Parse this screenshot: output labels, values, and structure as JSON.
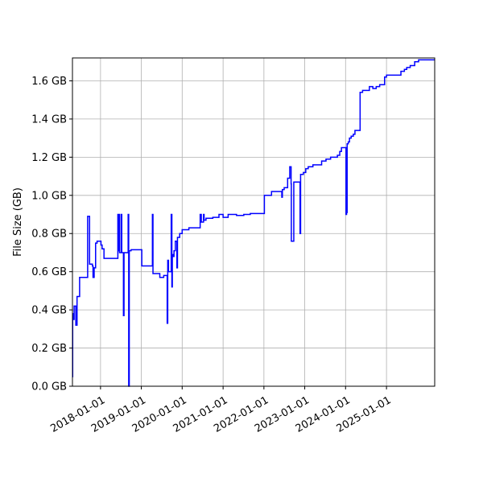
{
  "chart_data": {
    "type": "line",
    "title": "",
    "xlabel": "",
    "ylabel": "File Size (GB)",
    "x_axis": {
      "kind": "date",
      "range": [
        "2017-04-25",
        "2026-03-08"
      ],
      "ticks": [
        "2018-01-01",
        "2019-01-01",
        "2020-01-01",
        "2021-01-01",
        "2022-01-01",
        "2023-01-01",
        "2024-01-01",
        "2025-01-01"
      ],
      "tick_labels": [
        "2018-01-01",
        "2019-01-01",
        "2020-01-01",
        "2021-01-01",
        "2022-01-01",
        "2023-01-01",
        "2024-01-01",
        "2025-01-01"
      ]
    },
    "y_axis": {
      "ylim": [
        0,
        1.72
      ],
      "ticks": [
        0,
        0.2,
        0.4,
        0.6,
        0.8,
        1.0,
        1.2,
        1.4,
        1.6
      ],
      "tick_labels": [
        "0.0 GB",
        "0.2 GB",
        "0.4 GB",
        "0.6 GB",
        "0.8 GB",
        "1.0 GB",
        "1.2 GB",
        "1.4 GB",
        "1.6 GB"
      ]
    },
    "grid": true,
    "series": [
      {
        "color": "#0000ff",
        "step": true,
        "points": [
          [
            "2017-04-25",
            0.05
          ],
          [
            "2017-04-27",
            0.38
          ],
          [
            "2017-05-05",
            0.35
          ],
          [
            "2017-05-10",
            0.42
          ],
          [
            "2017-05-25",
            0.32
          ],
          [
            "2017-06-05",
            0.47
          ],
          [
            "2017-06-28",
            0.57
          ],
          [
            "2017-09-08",
            0.89
          ],
          [
            "2017-09-25",
            0.64
          ],
          [
            "2017-10-20",
            0.63
          ],
          [
            "2017-10-26",
            0.57
          ],
          [
            "2017-11-05",
            0.62
          ],
          [
            "2017-11-18",
            0.75
          ],
          [
            "2017-12-01",
            0.76
          ],
          [
            "2018-01-05",
            0.74
          ],
          [
            "2018-01-15",
            0.72
          ],
          [
            "2018-02-01",
            0.67
          ],
          [
            "2018-06-01",
            0.67
          ],
          [
            "2018-06-05",
            0.9
          ],
          [
            "2018-06-10",
            0.71
          ],
          [
            "2018-06-15",
            0.9
          ],
          [
            "2018-06-20",
            0.7
          ],
          [
            "2018-07-05",
            0.9
          ],
          [
            "2018-07-10",
            0.7
          ],
          [
            "2018-07-25",
            0.37
          ],
          [
            "2018-07-30",
            0.7
          ],
          [
            "2018-09-01",
            0.7
          ],
          [
            "2018-09-05",
            0.9
          ],
          [
            "2018-09-10",
            0.0
          ],
          [
            "2018-09-15",
            0.71
          ],
          [
            "2018-10-01",
            0.715
          ],
          [
            "2019-01-01",
            0.715
          ],
          [
            "2019-01-05",
            0.63
          ],
          [
            "2019-04-01",
            0.63
          ],
          [
            "2019-04-10",
            0.9
          ],
          [
            "2019-04-15",
            0.59
          ],
          [
            "2019-06-15",
            0.57
          ],
          [
            "2019-07-20",
            0.58
          ],
          [
            "2019-08-15",
            0.58
          ],
          [
            "2019-08-20",
            0.33
          ],
          [
            "2019-08-25",
            0.66
          ],
          [
            "2019-09-01",
            0.6
          ],
          [
            "2019-09-15",
            0.6
          ],
          [
            "2019-09-25",
            0.9
          ],
          [
            "2019-10-01",
            0.52
          ],
          [
            "2019-10-05",
            0.69
          ],
          [
            "2019-10-15",
            0.68
          ],
          [
            "2019-10-20",
            0.71
          ],
          [
            "2019-11-01",
            0.76
          ],
          [
            "2019-11-15",
            0.62
          ],
          [
            "2019-11-20",
            0.78
          ],
          [
            "2019-12-10",
            0.8
          ],
          [
            "2020-01-01",
            0.82
          ],
          [
            "2020-03-01",
            0.83
          ],
          [
            "2020-06-01",
            0.83
          ],
          [
            "2020-06-10",
            0.9
          ],
          [
            "2020-06-20",
            0.86
          ],
          [
            "2020-07-10",
            0.9
          ],
          [
            "2020-07-15",
            0.87
          ],
          [
            "2020-08-01",
            0.88
          ],
          [
            "2020-10-01",
            0.885
          ],
          [
            "2020-11-15",
            0.885
          ],
          [
            "2020-11-25",
            0.9
          ],
          [
            "2021-01-01",
            0.885
          ],
          [
            "2021-02-15",
            0.9
          ],
          [
            "2021-05-01",
            0.895
          ],
          [
            "2021-07-01",
            0.895
          ],
          [
            "2021-07-05",
            0.9
          ],
          [
            "2021-08-01",
            0.9
          ],
          [
            "2021-09-01",
            0.905
          ],
          [
            "2022-01-01",
            0.905
          ],
          [
            "2022-01-05",
            1.0
          ],
          [
            "2022-03-01",
            1.0
          ],
          [
            "2022-03-10",
            1.02
          ],
          [
            "2022-06-01",
            1.02
          ],
          [
            "2022-06-10",
            0.99
          ],
          [
            "2022-06-15",
            1.03
          ],
          [
            "2022-07-01",
            1.04
          ],
          [
            "2022-08-01",
            1.09
          ],
          [
            "2022-08-20",
            1.15
          ],
          [
            "2022-09-01",
            1.06
          ],
          [
            "2022-09-03",
            0.76
          ],
          [
            "2022-09-20",
            0.76
          ],
          [
            "2022-09-25",
            1.07
          ],
          [
            "2022-11-01",
            1.07
          ],
          [
            "2022-11-20",
            0.8
          ],
          [
            "2022-11-25",
            1.11
          ],
          [
            "2022-12-20",
            1.12
          ],
          [
            "2023-01-10",
            1.14
          ],
          [
            "2023-02-01",
            1.15
          ],
          [
            "2023-03-15",
            1.16
          ],
          [
            "2023-06-01",
            1.18
          ],
          [
            "2023-07-10",
            1.19
          ],
          [
            "2023-08-20",
            1.2
          ],
          [
            "2023-10-20",
            1.21
          ],
          [
            "2023-11-10",
            1.23
          ],
          [
            "2023-11-25",
            1.25
          ],
          [
            "2024-01-01",
            1.25
          ],
          [
            "2024-01-05",
            0.9
          ],
          [
            "2024-01-10",
            0.91
          ],
          [
            "2024-01-15",
            1.27
          ],
          [
            "2024-01-25",
            1.28
          ],
          [
            "2024-02-05",
            1.3
          ],
          [
            "2024-02-20",
            1.31
          ],
          [
            "2024-03-10",
            1.32
          ],
          [
            "2024-03-25",
            1.34
          ],
          [
            "2024-05-01",
            1.34
          ],
          [
            "2024-05-10",
            1.54
          ],
          [
            "2024-06-01",
            1.55
          ],
          [
            "2024-08-01",
            1.57
          ],
          [
            "2024-09-01",
            1.56
          ],
          [
            "2024-10-01",
            1.57
          ],
          [
            "2024-11-01",
            1.58
          ],
          [
            "2024-12-15",
            1.62
          ],
          [
            "2025-01-01",
            1.63
          ],
          [
            "2025-04-01",
            1.63
          ],
          [
            "2025-05-10",
            1.65
          ],
          [
            "2025-06-10",
            1.66
          ],
          [
            "2025-07-01",
            1.67
          ],
          [
            "2025-08-01",
            1.68
          ],
          [
            "2025-09-10",
            1.7
          ],
          [
            "2025-10-15",
            1.71
          ],
          [
            "2026-03-08",
            1.71
          ]
        ]
      }
    ]
  }
}
